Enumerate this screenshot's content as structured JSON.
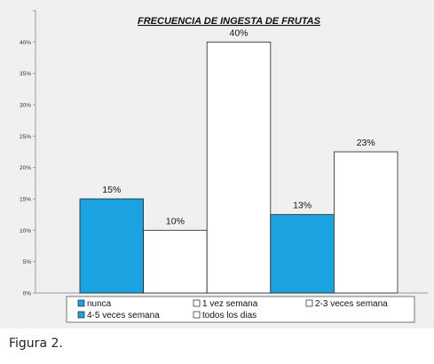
{
  "caption": "Figura 2.",
  "chart_data": {
    "type": "bar",
    "title": "FRECUENCIA DE INGESTA DE FRUTAS",
    "xlabel": "",
    "ylabel": "",
    "ylim": [
      0,
      45
    ],
    "yticks": [
      0,
      5,
      10,
      15,
      20,
      25,
      30,
      35,
      40,
      45
    ],
    "ytick_labels": [
      "0%",
      "5%",
      "10%",
      "15%",
      "20%",
      "25%",
      "30%",
      "35%",
      "40%",
      ""
    ],
    "grid": false,
    "legend_position": "bottom",
    "bars": [
      {
        "category": "nunca",
        "value": 15,
        "label": "15%",
        "color": "#1aa3e0"
      },
      {
        "category": "1 vez semana",
        "value": 10,
        "label": "10%",
        "color": "#ffffff"
      },
      {
        "category": "2-3 veces semana",
        "value": 40,
        "label": "40%",
        "color": "#ffffff"
      },
      {
        "category": "4-5 veces semana",
        "value": 12.5,
        "label": "13%",
        "color": "#1aa3e0"
      },
      {
        "category": "todos los dias",
        "value": 22.5,
        "label": "23%",
        "color": "#ffffff"
      }
    ],
    "legend": [
      {
        "label": "nunca",
        "color": "#1aa3e0"
      },
      {
        "label": "1 vez semana",
        "color": "#ffffff"
      },
      {
        "label": "2-3 veces semana",
        "color": "#ffffff"
      },
      {
        "label": "4-5 veces semana",
        "color": "#1aa3e0"
      },
      {
        "label": "todos los dias",
        "color": "#ffffff"
      }
    ]
  }
}
